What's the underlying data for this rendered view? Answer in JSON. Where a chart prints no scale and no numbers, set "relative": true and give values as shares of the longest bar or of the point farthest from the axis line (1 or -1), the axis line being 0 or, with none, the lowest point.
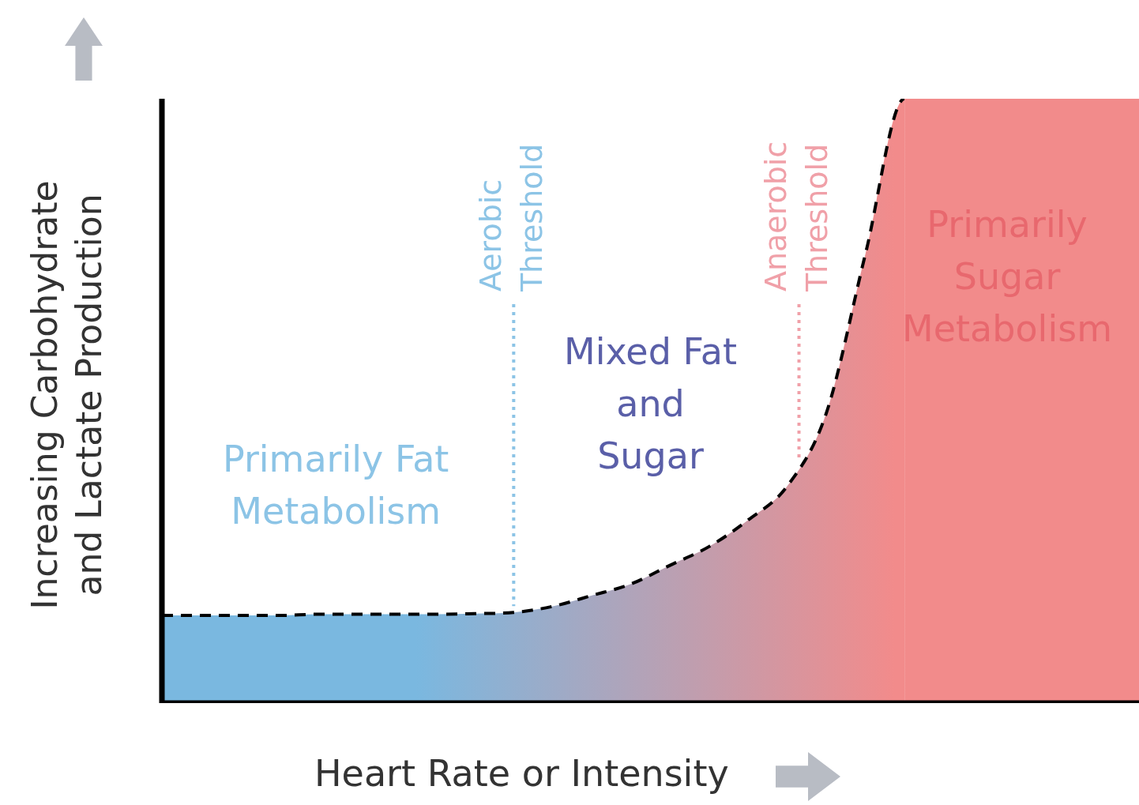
{
  "chart_data": {
    "type": "area",
    "relative": true,
    "xlabel": "Heart Rate or Intensity",
    "ylabel": "Increasing Carbohydrate\nand Lactate Production",
    "categories": [
      null,
      null,
      null,
      null,
      null,
      null,
      null,
      null,
      null,
      null,
      null,
      null,
      null,
      null,
      null,
      null,
      null,
      null,
      null,
      null,
      null,
      null,
      null,
      null,
      null,
      null
    ],
    "series": [
      {
        "color": "#000000",
        "values": [
          0.145,
          0.145,
          0.145,
          0.145,
          0.147,
          0.147,
          0.147,
          0.147,
          0.148,
          0.15,
          0.16,
          0.178,
          0.197,
          0.228,
          0.259,
          0.303,
          0.359,
          0.48,
          0.743,
          1,
          1,
          1,
          1,
          1,
          1,
          1
        ]
      }
    ],
    "line_style": "dashed",
    "marker": "none",
    "legend": false,
    "annotations": [
      "Primarily Fat\nMetabolism",
      "Mixed Fat\nand\nSugar",
      "Primarily\nSugar\nMetabolism",
      "Aerobic\nThreshold",
      "Anaerobic\nThreshold"
    ]
  }
}
